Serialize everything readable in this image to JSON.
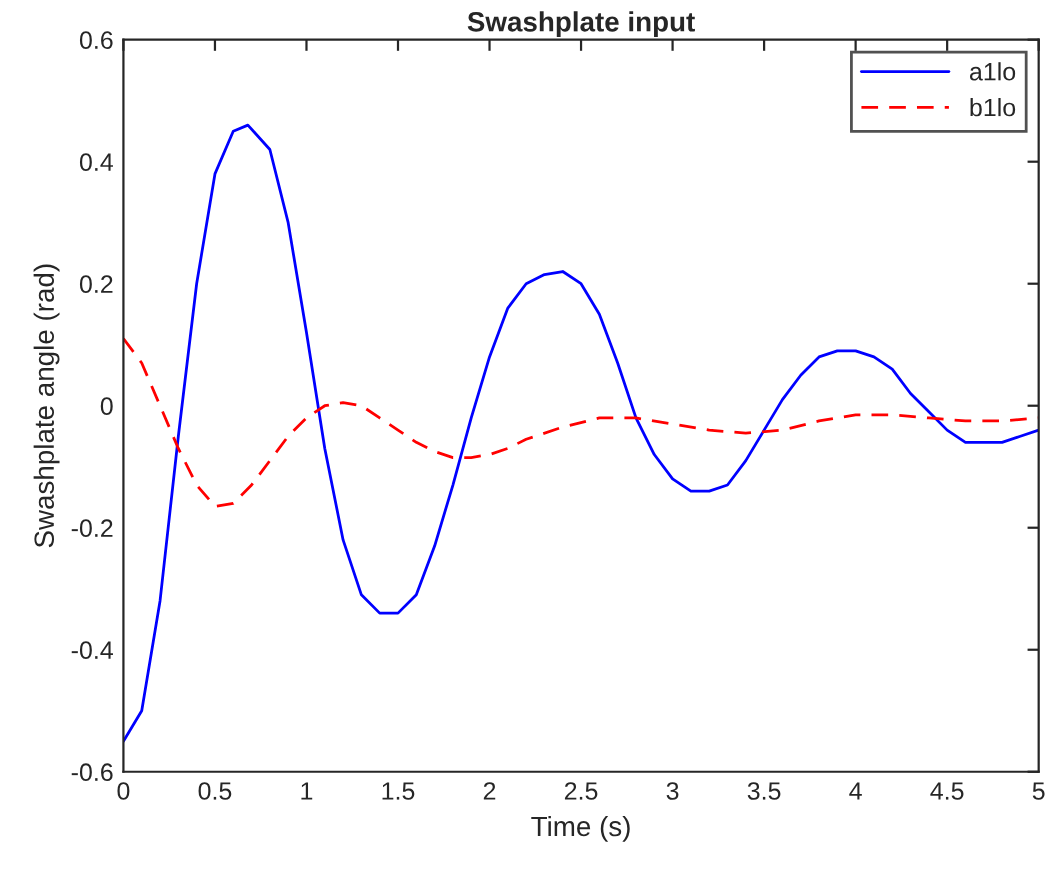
{
  "chart_data": {
    "type": "line",
    "title": "Swashplate input",
    "xlabel": "Time (s)",
    "ylabel": "Swashplate angle (rad)",
    "xlim": [
      0,
      5
    ],
    "ylim": [
      -0.6,
      0.6
    ],
    "xticks": [
      0,
      0.5,
      1,
      1.5,
      2,
      2.5,
      3,
      3.5,
      4,
      4.5,
      5
    ],
    "yticks": [
      -0.6,
      -0.4,
      -0.2,
      0,
      0.2,
      0.4,
      0.6
    ],
    "grid": false,
    "legend": "top right",
    "series": [
      {
        "name": "a1lo",
        "color": "#0000ff",
        "line_style": "solid",
        "x": [
          0,
          0.1,
          0.2,
          0.3,
          0.4,
          0.5,
          0.6,
          0.68,
          0.8,
          0.9,
          1.0,
          1.1,
          1.2,
          1.3,
          1.4,
          1.5,
          1.6,
          1.7,
          1.8,
          1.9,
          2.0,
          2.1,
          2.2,
          2.3,
          2.4,
          2.5,
          2.6,
          2.7,
          2.8,
          2.9,
          3.0,
          3.1,
          3.2,
          3.3,
          3.4,
          3.5,
          3.6,
          3.7,
          3.8,
          3.9,
          4.0,
          4.1,
          4.2,
          4.3,
          4.4,
          4.5,
          4.6,
          4.7,
          4.8,
          4.9,
          5.0
        ],
        "values": [
          -0.55,
          -0.5,
          -0.32,
          -0.05,
          0.2,
          0.38,
          0.45,
          0.46,
          0.42,
          0.3,
          0.12,
          -0.07,
          -0.22,
          -0.31,
          -0.34,
          -0.34,
          -0.31,
          -0.23,
          -0.13,
          -0.02,
          0.08,
          0.16,
          0.2,
          0.215,
          0.22,
          0.2,
          0.15,
          0.07,
          -0.02,
          -0.08,
          -0.12,
          -0.14,
          -0.14,
          -0.13,
          -0.09,
          -0.04,
          0.01,
          0.05,
          0.08,
          0.09,
          0.09,
          0.08,
          0.06,
          0.02,
          -0.01,
          -0.04,
          -0.06,
          -0.06,
          -0.06,
          -0.05,
          -0.04
        ]
      },
      {
        "name": "b1lo",
        "color": "#ff0000",
        "line_style": "dashed",
        "x": [
          0,
          0.1,
          0.2,
          0.3,
          0.4,
          0.5,
          0.6,
          0.7,
          0.8,
          0.9,
          1.0,
          1.1,
          1.2,
          1.3,
          1.4,
          1.5,
          1.6,
          1.7,
          1.8,
          1.9,
          2.0,
          2.1,
          2.2,
          2.4,
          2.6,
          2.8,
          3.0,
          3.2,
          3.4,
          3.6,
          3.8,
          4.0,
          4.2,
          4.4,
          4.6,
          4.8,
          5.0
        ],
        "values": [
          0.11,
          0.07,
          0.0,
          -0.07,
          -0.13,
          -0.165,
          -0.16,
          -0.13,
          -0.09,
          -0.05,
          -0.02,
          0.0,
          0.005,
          0.0,
          -0.02,
          -0.04,
          -0.06,
          -0.075,
          -0.085,
          -0.085,
          -0.08,
          -0.07,
          -0.055,
          -0.035,
          -0.02,
          -0.02,
          -0.03,
          -0.04,
          -0.045,
          -0.04,
          -0.025,
          -0.015,
          -0.015,
          -0.02,
          -0.025,
          -0.025,
          -0.02
        ]
      }
    ]
  }
}
